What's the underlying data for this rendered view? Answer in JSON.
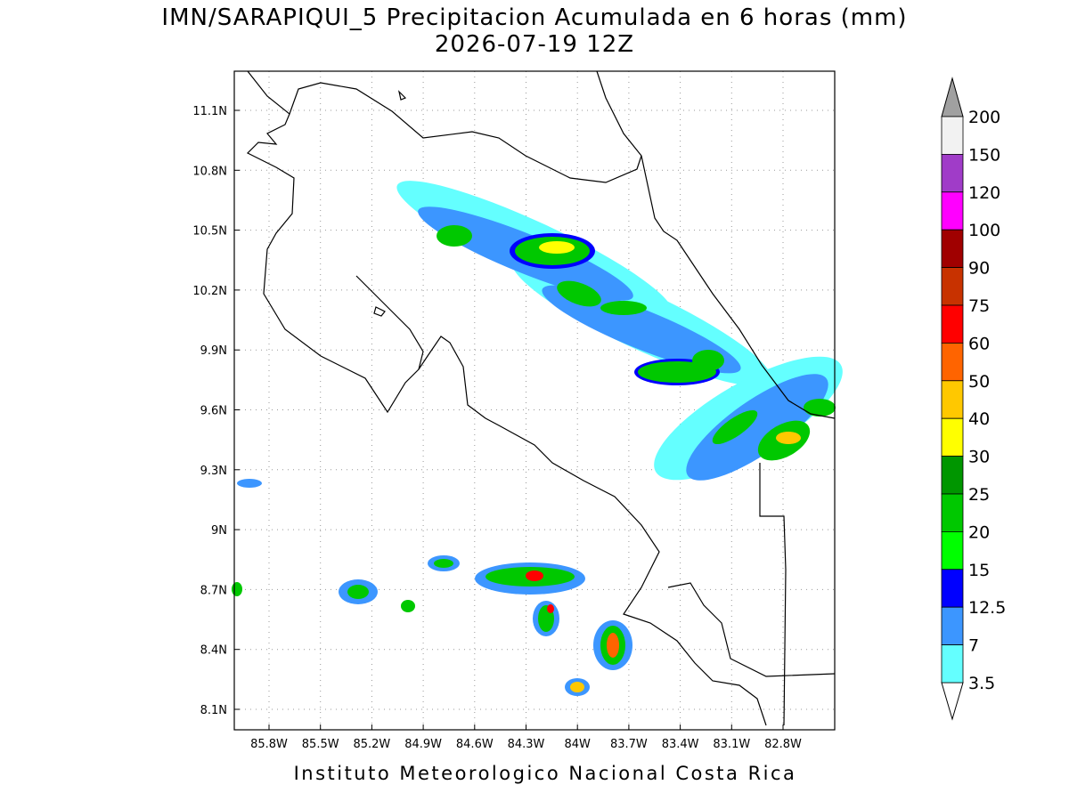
{
  "header": {
    "title": "IMN/SARAPIQUI_5 Precipitacion Acumulada en 6 horas (mm)",
    "subtitle": "2026-07-19 12Z"
  },
  "map": {
    "lat_labels": [
      "11.1N",
      "10.8N",
      "10.5N",
      "10.2N",
      "9.9N",
      "9.6N",
      "9.3N",
      "9N",
      "8.7N",
      "8.4N",
      "8.1N"
    ],
    "lon_labels": [
      "85.8W",
      "85.5W",
      "85.2W",
      "84.9W",
      "84.6W",
      "84.3W",
      "84W",
      "83.7W",
      "83.4W",
      "83.1W",
      "82.8W"
    ]
  },
  "colorbar": {
    "levels": [
      200,
      150,
      120,
      100,
      90,
      75,
      60,
      50,
      40,
      30,
      25,
      20,
      15,
      12.5,
      7,
      3.5
    ],
    "colors": [
      "#f2f2f2",
      "#a03cc8",
      "#ff00ff",
      "#a00000",
      "#c83200",
      "#ff0000",
      "#ff6400",
      "#ffc800",
      "#ffff00",
      "#009600",
      "#00c800",
      "#00ff00",
      "#0000ff",
      "#3c96ff",
      "#64ffff"
    ],
    "over_color": "#a0a0a0",
    "under_color": "#ffffff"
  },
  "footer": "Instituto Meteorologico Nacional Costa Rica"
}
